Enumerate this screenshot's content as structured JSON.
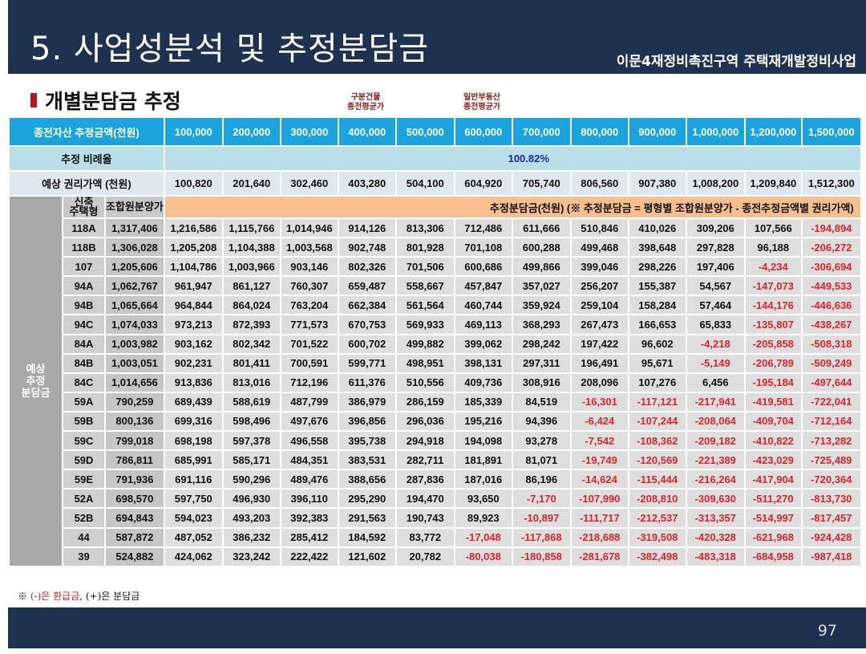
{
  "header": {
    "title": "5. 사업성분석 및 추정분담금",
    "subtitle": "이문4재정비촉진구역 주택재개발정비사업"
  },
  "section": {
    "title": "개별분담금 추정"
  },
  "annotations": {
    "col_400000": "구분건물\n종전평균가",
    "col_600000": "일반부동산\n종전평균가"
  },
  "colors": {
    "header_blue": "#1aa3dc",
    "navy": "#1e3250",
    "negative": "#d8262c",
    "orange": "#f8c08e"
  },
  "table": {
    "asset_label": "종전자산 추정금액(천원)",
    "asset_values": [
      "100,000",
      "200,000",
      "300,000",
      "400,000",
      "500,000",
      "600,000",
      "700,000",
      "800,000",
      "900,000",
      "1,000,000",
      "1,200,000",
      "1,500,000"
    ],
    "ratio_label": "추정 비례율",
    "ratio_value": "100.82%",
    "rights_label": "예상 권리가액 (천원)",
    "rights_values": [
      "100,820",
      "201,640",
      "302,460",
      "403,280",
      "504,100",
      "604,920",
      "705,740",
      "806,560",
      "907,380",
      "1,008,200",
      "1,209,840",
      "1,512,300"
    ],
    "group_label": "예상\n추정\n분담금",
    "type_header": "신축\n주택형",
    "price_header": "조합원분양가",
    "charge_header": "추정분담금(천원) (※ 추정분담금 = 평형별 조합원분양가 - 종전추정금액별 권리가액)",
    "rows": [
      {
        "type": "118A",
        "price": "1,317,406",
        "values": [
          "1,216,586",
          "1,115,766",
          "1,014,946",
          "914,126",
          "813,306",
          "712,486",
          "611,666",
          "510,846",
          "410,026",
          "309,206",
          "107,566",
          "-194,894"
        ]
      },
      {
        "type": "118B",
        "price": "1,306,028",
        "values": [
          "1,205,208",
          "1,104,388",
          "1,003,568",
          "902,748",
          "801,928",
          "701,108",
          "600,288",
          "499,468",
          "398,648",
          "297,828",
          "96,188",
          "-206,272"
        ]
      },
      {
        "type": "107",
        "price": "1,205,606",
        "values": [
          "1,104,786",
          "1,003,966",
          "903,146",
          "802,326",
          "701,506",
          "600,686",
          "499,866",
          "399,046",
          "298,226",
          "197,406",
          "-4,234",
          "-306,694"
        ]
      },
      {
        "type": "94A",
        "price": "1,062,767",
        "values": [
          "961,947",
          "861,127",
          "760,307",
          "659,487",
          "558,667",
          "457,847",
          "357,027",
          "256,207",
          "155,387",
          "54,567",
          "-147,073",
          "-449,533"
        ]
      },
      {
        "type": "94B",
        "price": "1,065,664",
        "values": [
          "964,844",
          "864,024",
          "763,204",
          "662,384",
          "561,564",
          "460,744",
          "359,924",
          "259,104",
          "158,284",
          "57,464",
          "-144,176",
          "-446,636"
        ]
      },
      {
        "type": "94C",
        "price": "1,074,033",
        "values": [
          "973,213",
          "872,393",
          "771,573",
          "670,753",
          "569,933",
          "469,113",
          "368,293",
          "267,473",
          "166,653",
          "65,833",
          "-135,807",
          "-438,267"
        ]
      },
      {
        "type": "84A",
        "price": "1,003,982",
        "values": [
          "903,162",
          "802,342",
          "701,522",
          "600,702",
          "499,882",
          "399,062",
          "298,242",
          "197,422",
          "96,602",
          "-4,218",
          "-205,858",
          "-508,318"
        ]
      },
      {
        "type": "84B",
        "price": "1,003,051",
        "values": [
          "902,231",
          "801,411",
          "700,591",
          "599,771",
          "498,951",
          "398,131",
          "297,311",
          "196,491",
          "95,671",
          "-5,149",
          "-206,789",
          "-509,249"
        ]
      },
      {
        "type": "84C",
        "price": "1,014,656",
        "values": [
          "913,836",
          "813,016",
          "712,196",
          "611,376",
          "510,556",
          "409,736",
          "308,916",
          "208,096",
          "107,276",
          "6,456",
          "-195,184",
          "-497,644"
        ]
      },
      {
        "type": "59A",
        "price": "790,259",
        "values": [
          "689,439",
          "588,619",
          "487,799",
          "386,979",
          "286,159",
          "185,339",
          "84,519",
          "-16,301",
          "-117,121",
          "-217,941",
          "-419,581",
          "-722,041"
        ]
      },
      {
        "type": "59B",
        "price": "800,136",
        "values": [
          "699,316",
          "598,496",
          "497,676",
          "396,856",
          "296,036",
          "195,216",
          "94,396",
          "-6,424",
          "-107,244",
          "-208,064",
          "-409,704",
          "-712,164"
        ]
      },
      {
        "type": "59C",
        "price": "799,018",
        "values": [
          "698,198",
          "597,378",
          "496,558",
          "395,738",
          "294,918",
          "194,098",
          "93,278",
          "-7,542",
          "-108,362",
          "-209,182",
          "-410,822",
          "-713,282"
        ]
      },
      {
        "type": "59D",
        "price": "786,811",
        "values": [
          "685,991",
          "585,171",
          "484,351",
          "383,531",
          "282,711",
          "181,891",
          "81,071",
          "-19,749",
          "-120,569",
          "-221,389",
          "-423,029",
          "-725,489"
        ]
      },
      {
        "type": "59E",
        "price": "791,936",
        "values": [
          "691,116",
          "590,296",
          "489,476",
          "388,656",
          "287,836",
          "187,016",
          "86,196",
          "-14,624",
          "-115,444",
          "-216,264",
          "-417,904",
          "-720,364"
        ]
      },
      {
        "type": "52A",
        "price": "698,570",
        "values": [
          "597,750",
          "496,930",
          "396,110",
          "295,290",
          "194,470",
          "93,650",
          "-7,170",
          "-107,990",
          "-208,810",
          "-309,630",
          "-511,270",
          "-813,730"
        ]
      },
      {
        "type": "52B",
        "price": "694,843",
        "values": [
          "594,023",
          "493,203",
          "392,383",
          "291,563",
          "190,743",
          "89,923",
          "-10,897",
          "-111,717",
          "-212,537",
          "-313,357",
          "-514,997",
          "-817,457"
        ]
      },
      {
        "type": "44",
        "price": "587,872",
        "values": [
          "487,052",
          "386,232",
          "285,412",
          "184,592",
          "83,772",
          "-17,048",
          "-117,868",
          "-218,688",
          "-319,508",
          "-420,328",
          "-621,968",
          "-924,428"
        ]
      },
      {
        "type": "39",
        "price": "524,882",
        "values": [
          "424,062",
          "323,242",
          "222,422",
          "121,602",
          "20,782",
          "-80,038",
          "-180,858",
          "-281,678",
          "-382,498",
          "-483,318",
          "-684,958",
          "-987,418"
        ]
      }
    ]
  },
  "footnote": {
    "mark": "※",
    "negative": "(-)은 환급금",
    "positive": ", (+)은 분담금"
  },
  "footer": {
    "page": "97"
  }
}
